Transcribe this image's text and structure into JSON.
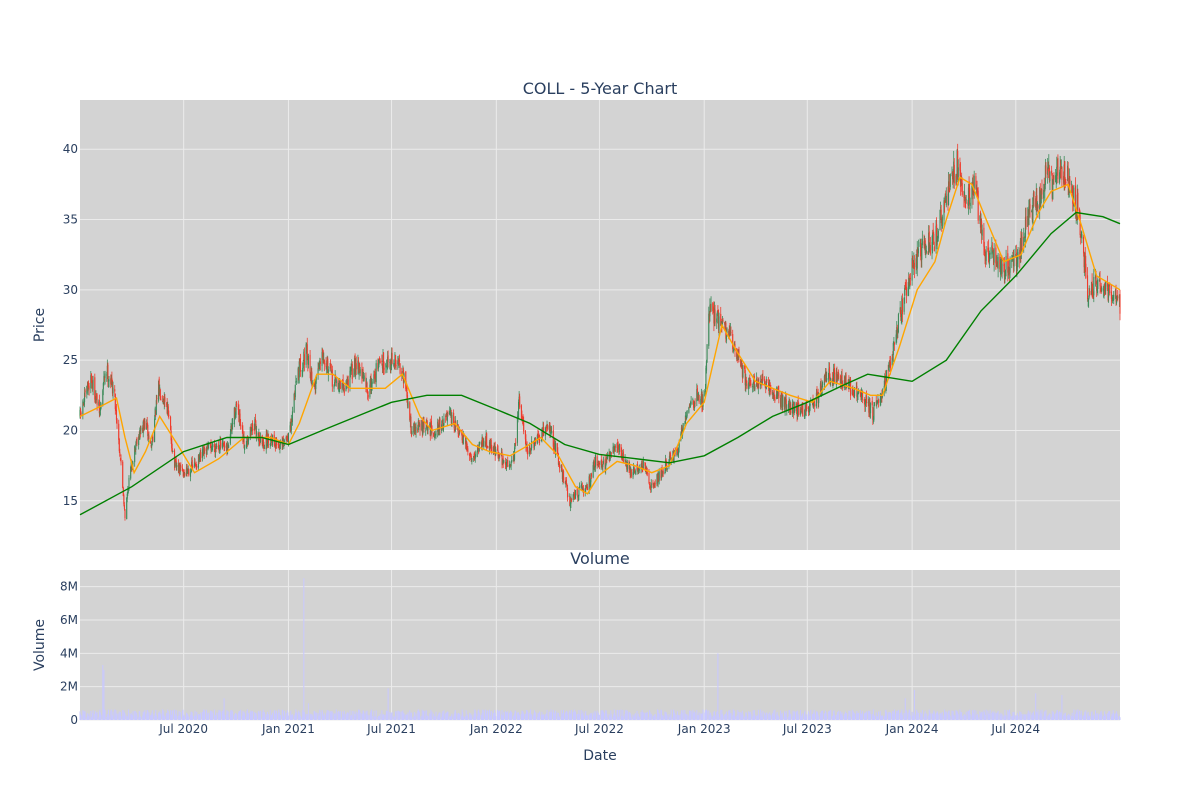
{
  "colors": {
    "plot_bg": "#d3d3d3",
    "grid": "#ebebeb",
    "increasing": "#3d8b5a",
    "decreasing": "#ef3b2c",
    "sma_short": "#ffa500",
    "sma_long": "#008000",
    "volume": "#c8c8ff",
    "text": "#2a3f5f"
  },
  "chart_data": [
    {
      "type": "candlestick",
      "title": "COLL - 5-Year Chart",
      "xlabel": "",
      "ylabel": "Price",
      "x_range": [
        "2020-01-01",
        "2024-12-31"
      ],
      "ylim": [
        11.5,
        43.5
      ],
      "y_ticks": [
        15,
        20,
        25,
        30,
        35,
        40
      ],
      "grid": true,
      "keyframes_close": [
        [
          "2020-01-01",
          21.0
        ],
        [
          "2020-01-20",
          23.8
        ],
        [
          "2020-02-05",
          21.2
        ],
        [
          "2020-02-15",
          24.5
        ],
        [
          "2020-03-01",
          22.8
        ],
        [
          "2020-03-12",
          18.0
        ],
        [
          "2020-03-20",
          14.0
        ],
        [
          "2020-03-28",
          16.8
        ],
        [
          "2020-04-10",
          19.5
        ],
        [
          "2020-04-25",
          20.5
        ],
        [
          "2020-05-05",
          18.8
        ],
        [
          "2020-05-18",
          23.0
        ],
        [
          "2020-06-01",
          22.0
        ],
        [
          "2020-06-15",
          17.5
        ],
        [
          "2020-07-01",
          17.0
        ],
        [
          "2020-07-20",
          17.5
        ],
        [
          "2020-08-15",
          18.8
        ],
        [
          "2020-09-01",
          19.0
        ],
        [
          "2020-09-15",
          18.5
        ],
        [
          "2020-10-01",
          21.8
        ],
        [
          "2020-10-15",
          19.0
        ],
        [
          "2020-11-01",
          20.5
        ],
        [
          "2020-11-15",
          19.0
        ],
        [
          "2020-12-01",
          19.5
        ],
        [
          "2020-12-20",
          18.8
        ],
        [
          "2021-01-05",
          20.0
        ],
        [
          "2021-01-15",
          24.0
        ],
        [
          "2021-02-01",
          25.5
        ],
        [
          "2021-02-15",
          23.0
        ],
        [
          "2021-03-01",
          25.8
        ],
        [
          "2021-03-20",
          23.5
        ],
        [
          "2021-04-10",
          23.0
        ],
        [
          "2021-05-01",
          25.0
        ],
        [
          "2021-05-20",
          22.8
        ],
        [
          "2021-06-10",
          24.8
        ],
        [
          "2021-07-01",
          25.0
        ],
        [
          "2021-07-20",
          24.5
        ],
        [
          "2021-08-05",
          20.0
        ],
        [
          "2021-08-20",
          20.3
        ],
        [
          "2021-09-15",
          20.0
        ],
        [
          "2021-10-10",
          21.0
        ],
        [
          "2021-11-01",
          19.5
        ],
        [
          "2021-11-20",
          18.0
        ],
        [
          "2021-12-10",
          19.5
        ],
        [
          "2022-01-01",
          18.5
        ],
        [
          "2022-01-20",
          17.5
        ],
        [
          "2022-02-01",
          18.2
        ],
        [
          "2022-02-10",
          22.0
        ],
        [
          "2022-02-25",
          18.5
        ],
        [
          "2022-03-20",
          19.5
        ],
        [
          "2022-04-01",
          20.5
        ],
        [
          "2022-04-20",
          18.0
        ],
        [
          "2022-05-10",
          15.0
        ],
        [
          "2022-05-20",
          15.5
        ],
        [
          "2022-06-10",
          16.0
        ],
        [
          "2022-06-25",
          18.0
        ],
        [
          "2022-07-10",
          17.5
        ],
        [
          "2022-08-01",
          19.0
        ],
        [
          "2022-08-25",
          17.0
        ],
        [
          "2022-09-15",
          17.5
        ],
        [
          "2022-10-01",
          16.0
        ],
        [
          "2022-10-25",
          17.5
        ],
        [
          "2022-11-15",
          18.5
        ],
        [
          "2022-12-01",
          21.5
        ],
        [
          "2022-12-20",
          22.5
        ],
        [
          "2023-01-01",
          22.0
        ],
        [
          "2023-01-10",
          28.5
        ],
        [
          "2023-01-25",
          28.0
        ],
        [
          "2023-02-10",
          27.0
        ],
        [
          "2023-03-01",
          25.5
        ],
        [
          "2023-03-15",
          23.5
        ],
        [
          "2023-04-01",
          23.5
        ],
        [
          "2023-05-01",
          22.8
        ],
        [
          "2023-06-01",
          21.5
        ],
        [
          "2023-07-01",
          21.5
        ],
        [
          "2023-07-20",
          22.5
        ],
        [
          "2023-08-05",
          24.0
        ],
        [
          "2023-09-01",
          23.5
        ],
        [
          "2023-10-01",
          22.5
        ],
        [
          "2023-10-25",
          21.2
        ],
        [
          "2023-11-10",
          23.0
        ],
        [
          "2023-11-25",
          25.0
        ],
        [
          "2023-12-15",
          29.0
        ],
        [
          "2024-01-01",
          31.5
        ],
        [
          "2024-01-20",
          33.0
        ],
        [
          "2024-02-10",
          33.5
        ],
        [
          "2024-03-01",
          36.5
        ],
        [
          "2024-03-20",
          39.0
        ],
        [
          "2024-04-05",
          36.5
        ],
        [
          "2024-04-20",
          37.5
        ],
        [
          "2024-05-05",
          33.0
        ],
        [
          "2024-05-20",
          32.5
        ],
        [
          "2024-06-10",
          31.5
        ],
        [
          "2024-06-25",
          32.0
        ],
        [
          "2024-07-10",
          33.0
        ],
        [
          "2024-07-25",
          35.5
        ],
        [
          "2024-08-15",
          37.0
        ],
        [
          "2024-08-25",
          38.5
        ],
        [
          "2024-09-05",
          37.0
        ],
        [
          "2024-09-15",
          39.0
        ],
        [
          "2024-10-01",
          38.0
        ],
        [
          "2024-10-20",
          35.5
        ],
        [
          "2024-11-05",
          29.5
        ],
        [
          "2024-11-20",
          30.5
        ],
        [
          "2024-12-05",
          30.0
        ],
        [
          "2024-12-31",
          29.0
        ]
      ],
      "series": [
        {
          "kind": "sma_short",
          "points": [
            [
              "2020-01-01",
              21.0
            ],
            [
              "2020-02-10",
              21.8
            ],
            [
              "2020-03-05",
              22.3
            ],
            [
              "2020-03-20",
              19.5
            ],
            [
              "2020-04-05",
              17.0
            ],
            [
              "2020-04-25",
              18.5
            ],
            [
              "2020-05-20",
              21.0
            ],
            [
              "2020-06-20",
              19.0
            ],
            [
              "2020-07-20",
              17.0
            ],
            [
              "2020-09-01",
              18.0
            ],
            [
              "2020-10-15",
              19.5
            ],
            [
              "2020-12-01",
              19.5
            ],
            [
              "2021-01-01",
              19.0
            ],
            [
              "2021-01-20",
              20.5
            ],
            [
              "2021-02-20",
              24.0
            ],
            [
              "2021-03-20",
              24.0
            ],
            [
              "2021-04-20",
              23.0
            ],
            [
              "2021-05-20",
              23.0
            ],
            [
              "2021-06-20",
              23.0
            ],
            [
              "2021-07-20",
              24.0
            ],
            [
              "2021-08-20",
              21.0
            ],
            [
              "2021-09-10",
              20.0
            ],
            [
              "2021-10-20",
              20.5
            ],
            [
              "2021-11-20",
              19.0
            ],
            [
              "2021-12-20",
              18.5
            ],
            [
              "2022-01-25",
              18.2
            ],
            [
              "2022-02-20",
              18.8
            ],
            [
              "2022-03-20",
              19.5
            ],
            [
              "2022-04-20",
              18.2
            ],
            [
              "2022-05-20",
              16.0
            ],
            [
              "2022-06-10",
              15.5
            ],
            [
              "2022-06-30",
              16.8
            ],
            [
              "2022-08-01",
              17.8
            ],
            [
              "2022-09-01",
              17.5
            ],
            [
              "2022-10-01",
              17.0
            ],
            [
              "2022-11-01",
              17.5
            ],
            [
              "2022-12-01",
              20.5
            ],
            [
              "2023-01-01",
              22.0
            ],
            [
              "2023-02-01",
              27.5
            ],
            [
              "2023-03-01",
              25.5
            ],
            [
              "2023-04-01",
              23.5
            ],
            [
              "2023-05-01",
              23.0
            ],
            [
              "2023-06-01",
              22.5
            ],
            [
              "2023-07-10",
              22.0
            ],
            [
              "2023-08-10",
              23.5
            ],
            [
              "2023-09-20",
              23.0
            ],
            [
              "2023-10-20",
              22.5
            ],
            [
              "2023-11-10",
              22.5
            ],
            [
              "2023-12-10",
              26.0
            ],
            [
              "2024-01-10",
              30.0
            ],
            [
              "2024-02-10",
              32.0
            ],
            [
              "2024-03-01",
              35.0
            ],
            [
              "2024-03-25",
              38.0
            ],
            [
              "2024-04-15",
              37.5
            ],
            [
              "2024-05-10",
              35.0
            ],
            [
              "2024-06-10",
              32.0
            ],
            [
              "2024-07-10",
              32.5
            ],
            [
              "2024-08-10",
              35.5
            ],
            [
              "2024-09-01",
              37.0
            ],
            [
              "2024-10-01",
              37.5
            ],
            [
              "2024-10-25",
              34.5
            ],
            [
              "2024-11-20",
              31.0
            ],
            [
              "2024-12-31",
              30.0
            ]
          ]
        },
        {
          "kind": "sma_long",
          "points": [
            [
              "2020-01-01",
              14.0
            ],
            [
              "2020-04-01",
              16.0
            ],
            [
              "2020-07-01",
              18.5
            ],
            [
              "2020-09-15",
              19.5
            ],
            [
              "2020-11-15",
              19.5
            ],
            [
              "2021-01-01",
              19.0
            ],
            [
              "2021-03-01",
              20.0
            ],
            [
              "2021-05-01",
              21.0
            ],
            [
              "2021-07-01",
              22.0
            ],
            [
              "2021-09-01",
              22.5
            ],
            [
              "2021-11-01",
              22.5
            ],
            [
              "2022-01-01",
              21.5
            ],
            [
              "2022-03-01",
              20.5
            ],
            [
              "2022-05-01",
              19.0
            ],
            [
              "2022-07-01",
              18.3
            ],
            [
              "2022-09-01",
              18.0
            ],
            [
              "2022-11-01",
              17.7
            ],
            [
              "2023-01-01",
              18.2
            ],
            [
              "2023-03-01",
              19.5
            ],
            [
              "2023-05-01",
              21.0
            ],
            [
              "2023-07-01",
              22.0
            ],
            [
              "2023-09-01",
              23.2
            ],
            [
              "2023-10-15",
              24.0
            ],
            [
              "2023-11-15",
              23.8
            ],
            [
              "2024-01-01",
              23.5
            ],
            [
              "2024-03-01",
              25.0
            ],
            [
              "2024-05-01",
              28.5
            ],
            [
              "2024-07-01",
              31.0
            ],
            [
              "2024-09-01",
              34.0
            ],
            [
              "2024-10-15",
              35.5
            ],
            [
              "2024-12-01",
              35.2
            ],
            [
              "2024-12-31",
              34.7
            ]
          ]
        }
      ]
    },
    {
      "type": "bar",
      "title": "Volume",
      "xlabel": "Date",
      "ylabel": "Volume",
      "x_range": [
        "2020-01-01",
        "2024-12-31"
      ],
      "ylim": [
        0,
        9000000
      ],
      "y_ticks": [
        {
          "value": 0,
          "label": "0"
        },
        {
          "value": 2000000,
          "label": "2M"
        },
        {
          "value": 4000000,
          "label": "4M"
        },
        {
          "value": 6000000,
          "label": "6M"
        },
        {
          "value": 8000000,
          "label": "8M"
        }
      ],
      "x_ticks": [
        {
          "date": "2020-07-01",
          "label": "Jul 2020"
        },
        {
          "date": "2021-01-01",
          "label": "Jan 2021"
        },
        {
          "date": "2021-07-01",
          "label": "Jul 2021"
        },
        {
          "date": "2022-01-01",
          "label": "Jan 2022"
        },
        {
          "date": "2022-07-01",
          "label": "Jul 2022"
        },
        {
          "date": "2023-01-01",
          "label": "Jan 2023"
        },
        {
          "date": "2023-07-01",
          "label": "Jul 2023"
        },
        {
          "date": "2024-01-01",
          "label": "Jan 2024"
        },
        {
          "date": "2024-07-01",
          "label": "Jul 2024"
        }
      ],
      "baseline_volume": 400000,
      "spikes": [
        [
          "2020-02-10",
          3300000
        ],
        [
          "2020-02-12",
          3000000
        ],
        [
          "2020-03-15",
          1300000
        ],
        [
          "2020-09-10",
          1300000
        ],
        [
          "2021-01-28",
          8500000
        ],
        [
          "2021-02-05",
          1000000
        ],
        [
          "2021-06-25",
          1900000
        ],
        [
          "2022-02-12",
          2800000
        ],
        [
          "2022-02-20",
          1200000
        ],
        [
          "2023-01-25",
          4000000
        ],
        [
          "2023-08-05",
          1800000
        ],
        [
          "2023-12-20",
          1300000
        ],
        [
          "2024-01-05",
          1800000
        ],
        [
          "2024-04-20",
          1800000
        ],
        [
          "2024-06-15",
          2100000
        ],
        [
          "2024-08-05",
          1600000
        ],
        [
          "2024-09-20",
          1500000
        ]
      ]
    }
  ]
}
